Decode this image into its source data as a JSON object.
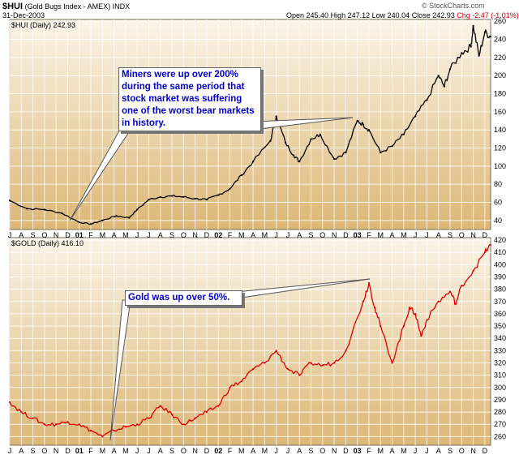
{
  "header": {
    "symbol": "$HUI",
    "name": "(Gold Bugs Index - AMEX)",
    "exchange": "INDX",
    "date": "31-Dec-2003",
    "open": "Open 245.40",
    "high": "High 247.12",
    "low": "Low 240.04",
    "close": "Close 242.93",
    "change": "Chg -2.47 (-1.01%)",
    "credit": "© StockCharts.com",
    "change_color": "#cc0000"
  },
  "annotations": {
    "hui": "Miners were up over 200% during the same period that stock market was suffering one of the worst bear markets in history.",
    "gold": "Gold was up over 50%."
  },
  "colors": {
    "panel_top": "#fbf4e7",
    "panel_bottom": "#dcb776",
    "hui_line": "#000000",
    "gold_line": "#e00000",
    "note_text": "#0000cc"
  },
  "chart_data": [
    {
      "type": "line",
      "title": "$HUI (Daily) 242.93",
      "ylim": [
        30,
        262
      ],
      "yticks": [
        40,
        60,
        80,
        100,
        120,
        140,
        160,
        180,
        200,
        220,
        240,
        260
      ],
      "grid": true,
      "x_tick_labels": [
        "J",
        "A",
        "S",
        "O",
        "N",
        "D",
        "01",
        "F",
        "M",
        "A",
        "M",
        "J",
        "J",
        "A",
        "S",
        "O",
        "N",
        "D",
        "02",
        "F",
        "M",
        "A",
        "M",
        "J",
        "J",
        "A",
        "S",
        "O",
        "N",
        "D",
        "03",
        "F",
        "M",
        "A",
        "M",
        "J",
        "J",
        "A",
        "S",
        "O",
        "N",
        "D"
      ],
      "series": [
        {
          "x": [
            0,
            1.5,
            3,
            4.5,
            6,
            7,
            8,
            9.2,
            10.3,
            11,
            12,
            13,
            14,
            15,
            16,
            17,
            18,
            19,
            20,
            21,
            22.5,
            23,
            23.8,
            24.5,
            25,
            26,
            26.8,
            28,
            29,
            30,
            30.5,
            31,
            32,
            33,
            34,
            35,
            36,
            37,
            37.5,
            38,
            39,
            39.8,
            40,
            40.5,
            41,
            41.5
          ],
          "values": [
            62,
            53,
            52,
            48,
            38,
            36,
            40,
            45,
            43,
            52,
            63,
            66,
            67,
            66,
            64,
            63,
            68,
            75,
            90,
            105,
            128,
            155,
            126,
            112,
            105,
            130,
            135,
            108,
            115,
            150,
            146,
            140,
            115,
            122,
            135,
            155,
            173,
            200,
            188,
            207,
            225,
            232,
            255,
            222,
            248,
            242.93
          ]
        }
      ]
    },
    {
      "type": "line",
      "title": "$GOLD (Daily) 416.10",
      "ylim": [
        253,
        422
      ],
      "yticks": [
        260,
        270,
        280,
        290,
        300,
        310,
        320,
        330,
        340,
        350,
        360,
        370,
        380,
        390,
        400,
        410,
        420
      ],
      "grid": true,
      "x_tick_labels": [
        "J",
        "A",
        "S",
        "O",
        "N",
        "D",
        "01",
        "F",
        "M",
        "A",
        "M",
        "J",
        "J",
        "A",
        "S",
        "O",
        "N",
        "D",
        "02",
        "F",
        "M",
        "A",
        "M",
        "J",
        "J",
        "A",
        "S",
        "O",
        "N",
        "D",
        "03",
        "F",
        "M",
        "A",
        "M",
        "J",
        "J",
        "A",
        "S",
        "O",
        "N",
        "D"
      ],
      "series": [
        {
          "x": [
            0,
            1,
            2,
            3,
            4,
            5,
            6,
            7,
            8,
            9,
            10,
            11,
            12,
            13,
            14,
            15,
            16,
            17,
            18,
            19,
            20,
            21,
            22,
            23,
            24,
            25,
            26,
            27,
            28,
            29,
            30.5,
            31,
            31.5,
            32,
            33,
            34,
            34.5,
            35,
            35.5,
            36,
            37,
            38,
            38.5,
            39,
            40,
            41,
            41.5
          ],
          "values": [
            288,
            280,
            275,
            270,
            270,
            272,
            270,
            265,
            260,
            265,
            268,
            270,
            275,
            285,
            278,
            270,
            275,
            280,
            285,
            300,
            305,
            315,
            320,
            330,
            315,
            310,
            320,
            318,
            320,
            330,
            370,
            385,
            365,
            350,
            320,
            350,
            365,
            360,
            342,
            355,
            370,
            378,
            368,
            383,
            395,
            410,
            416.1
          ]
        }
      ]
    }
  ]
}
